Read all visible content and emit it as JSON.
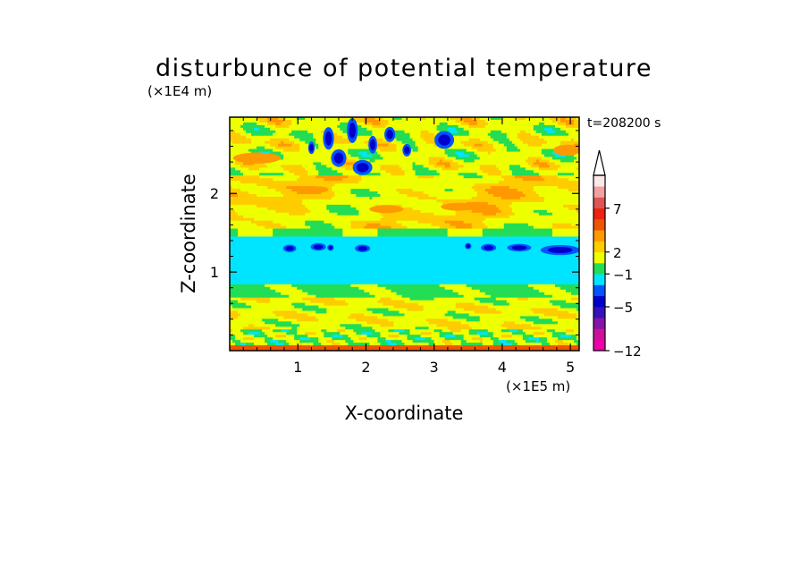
{
  "chart_data": {
    "type": "heatmap",
    "title": "disturbunce of potential temperature",
    "xlabel": "X-coordinate",
    "ylabel": "Z-coordinate",
    "x_scale_label": "(×1E5 m)",
    "y_scale_label": "(×1E4 m)",
    "time_label": "t=208200 s",
    "xlim": [
      0,
      5.13
    ],
    "ylim": [
      0,
      2.97
    ],
    "x_ticks": [
      "1",
      "2",
      "3",
      "4",
      "5"
    ],
    "x_tick_values": [
      1,
      2,
      3,
      4,
      5
    ],
    "y_ticks": [
      "1",
      "2"
    ],
    "y_tick_values": [
      1,
      2
    ],
    "colorbar": {
      "colors": [
        "#ee00aa",
        "#cc1199",
        "#8811aa",
        "#3311bb",
        "#0000cc",
        "#0055ff",
        "#00e5ff",
        "#22dd55",
        "#eeff00",
        "#ffcc00",
        "#ff9900",
        "#ee5500",
        "#ee2211",
        "#dd5555",
        "#f2a0a0",
        "#fce8e8"
      ],
      "tick_labels": [
        "7",
        "2",
        "−1",
        "−5",
        "−12"
      ],
      "tick_boundary_index": [
        13,
        9,
        7,
        4,
        0
      ],
      "extend_max": true
    },
    "field_bands": [
      {
        "z_range": [
          0.0,
          0.08
        ],
        "dominant": "green"
      },
      {
        "z_range": [
          0.08,
          0.7
        ],
        "dominant": "yellow",
        "notes": "green patches near surface"
      },
      {
        "z_range": [
          0.7,
          0.85
        ],
        "dominant": "green"
      },
      {
        "z_range": [
          0.85,
          1.45
        ],
        "dominant": "cyan",
        "notes": "dark blue spots near z=1.3"
      },
      {
        "z_range": [
          1.45,
          1.6
        ],
        "dominant": "green"
      },
      {
        "z_range": [
          1.6,
          2.2
        ],
        "dominant": "yellow",
        "notes": "orange streaks"
      },
      {
        "z_range": [
          2.2,
          2.97
        ],
        "dominant": "yellow/green",
        "notes": "wave pattern with blue cells near x=1.4–3.2"
      }
    ]
  }
}
